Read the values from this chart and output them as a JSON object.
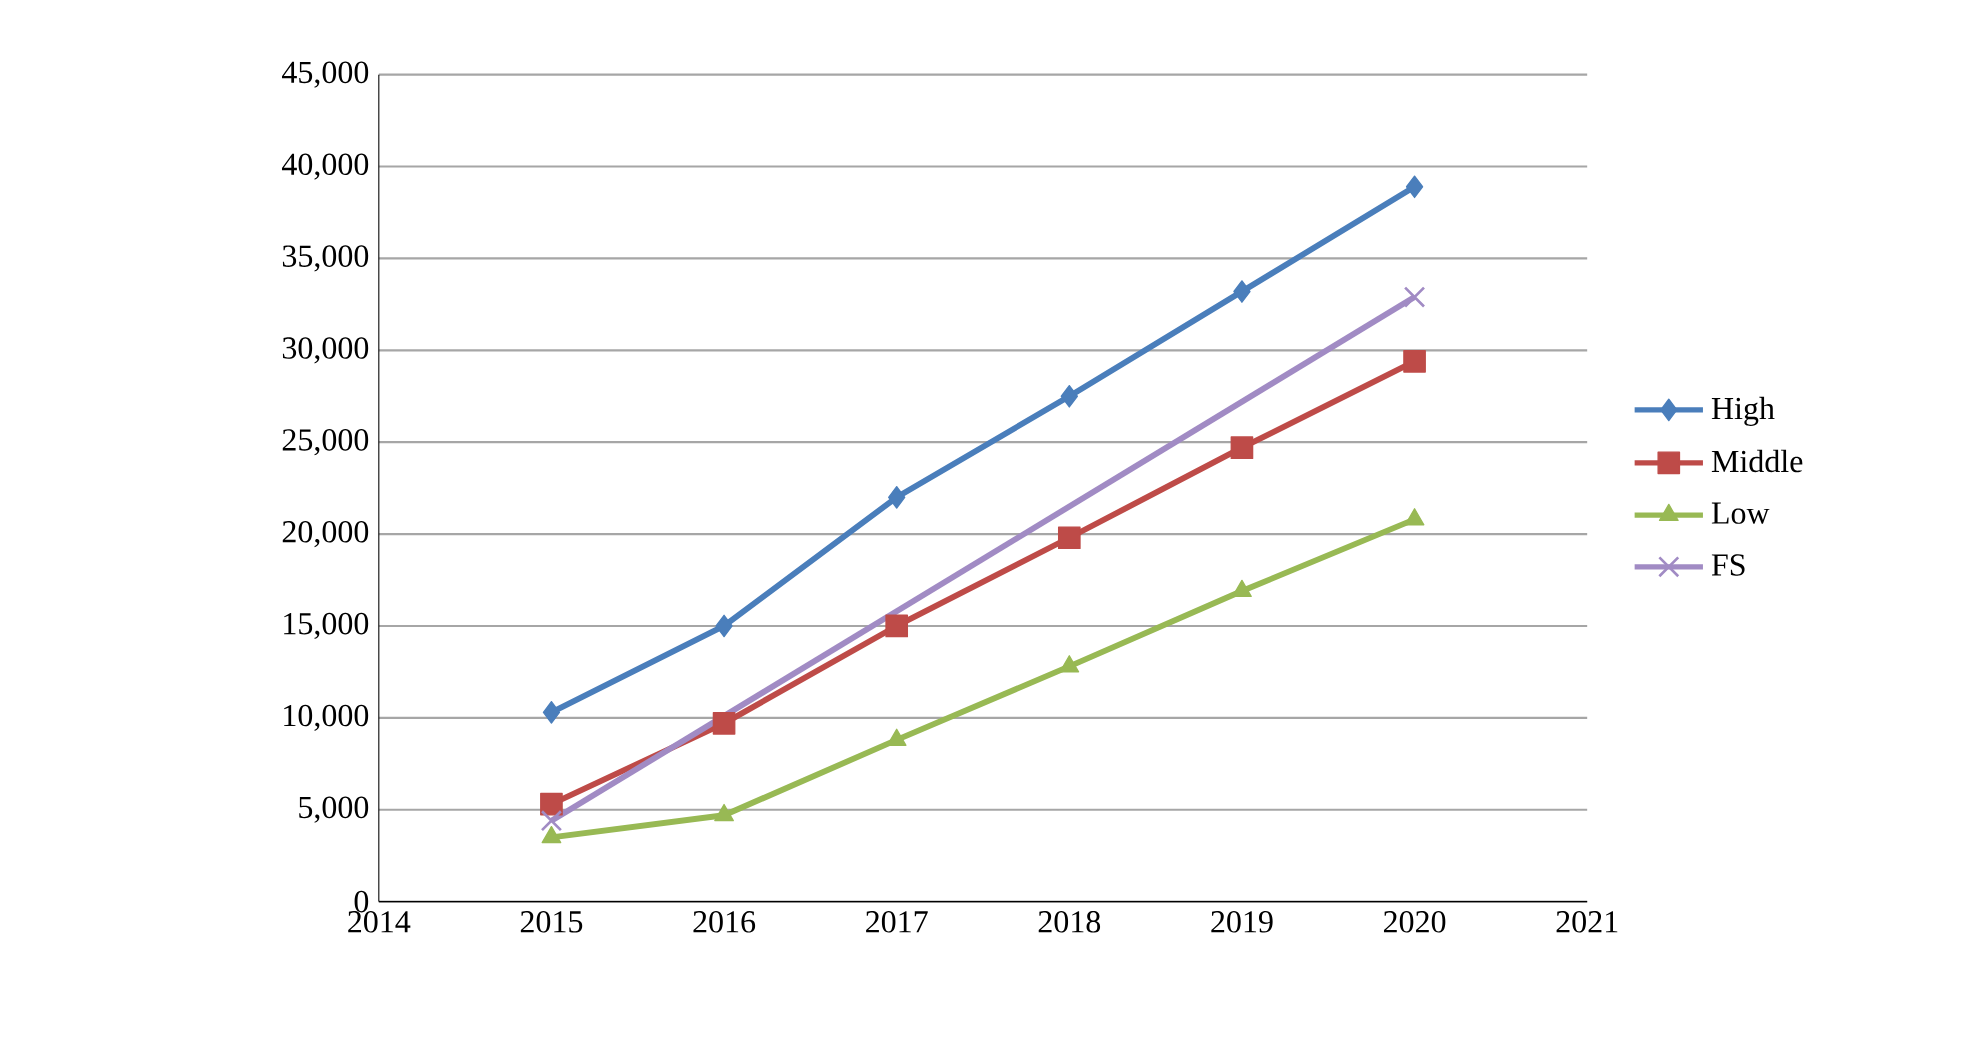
{
  "chart_data": {
    "type": "line",
    "xlim": [
      2014,
      2021
    ],
    "xticks": [
      2014,
      2015,
      2016,
      2017,
      2018,
      2019,
      2020,
      2021
    ],
    "ylim": [
      0,
      45000
    ],
    "yticks": [
      {
        "value": 0,
        "label": "0"
      },
      {
        "value": 5000,
        "label": "5,000"
      },
      {
        "value": 10000,
        "label": "10,000"
      },
      {
        "value": 15000,
        "label": "15,000"
      },
      {
        "value": 20000,
        "label": "20,000"
      },
      {
        "value": 25000,
        "label": "25,000"
      },
      {
        "value": 30000,
        "label": "30,000"
      },
      {
        "value": 35000,
        "label": "35,000"
      },
      {
        "value": 40000,
        "label": "40,000"
      },
      {
        "value": 45000,
        "label": "45,000"
      }
    ],
    "grid": "y",
    "legend": "right",
    "line_style": "solid",
    "series": [
      {
        "name": "High",
        "color": "#4a7ebb",
        "marker": "diamond",
        "x": [
          2015,
          2016,
          2017,
          2018,
          2019,
          2020
        ],
        "values": [
          10300,
          15000,
          22000,
          27500,
          33200,
          38900
        ]
      },
      {
        "name": "Middle",
        "color": "#be4b48",
        "marker": "square",
        "x": [
          2015,
          2016,
          2017,
          2018,
          2019,
          2020
        ],
        "values": [
          5300,
          9700,
          15000,
          19800,
          24700,
          29400
        ]
      },
      {
        "name": "Low",
        "color": "#98b954",
        "marker": "triangle",
        "x": [
          2015,
          2016,
          2017,
          2018,
          2019,
          2020
        ],
        "values": [
          3500,
          4700,
          8800,
          12800,
          16900,
          20800
        ]
      },
      {
        "name": "FS",
        "color": "#a18bc4",
        "marker": "cross",
        "x": [
          2015,
          2020
        ],
        "values": [
          4400,
          32900
        ]
      }
    ]
  }
}
